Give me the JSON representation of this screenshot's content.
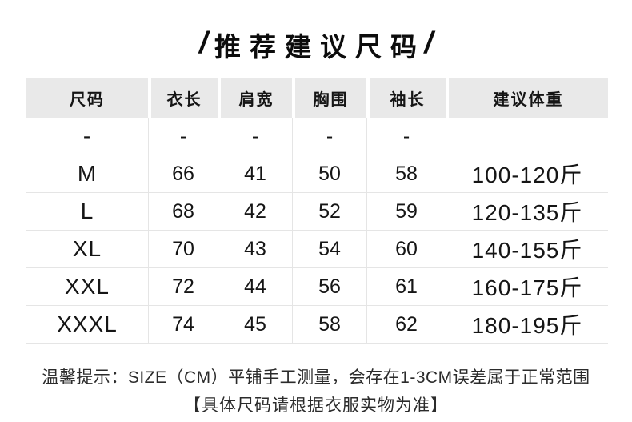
{
  "title": {
    "slash_left": "/",
    "text": "推荐建议尺码",
    "slash_right": "/"
  },
  "table": {
    "headers": [
      "尺码",
      "衣长",
      "肩宽",
      "胸围",
      "袖长",
      "建议体重"
    ],
    "rows": [
      [
        "-",
        "-",
        "-",
        "-",
        "-",
        ""
      ],
      [
        "M",
        "66",
        "41",
        "50",
        "58",
        "100-120斤"
      ],
      [
        "L",
        "68",
        "42",
        "52",
        "59",
        "120-135斤"
      ],
      [
        "XL",
        "70",
        "43",
        "54",
        "60",
        "140-155斤"
      ],
      [
        "XXL",
        "72",
        "44",
        "56",
        "61",
        "160-175斤"
      ],
      [
        "XXXL",
        "74",
        "45",
        "58",
        "62",
        "180-195斤"
      ]
    ]
  },
  "footer": {
    "line1": "温馨提示：SIZE（CM）平铺手工测量，会存在1-3CM误差属于正常范围",
    "line2": "【具体尺码请根据衣服实物为准】"
  },
  "colors": {
    "header_bg": "#e9e9e9",
    "grid_line": "#e5e5e5",
    "text": "#151515",
    "footer_text": "#2b2b2b"
  }
}
